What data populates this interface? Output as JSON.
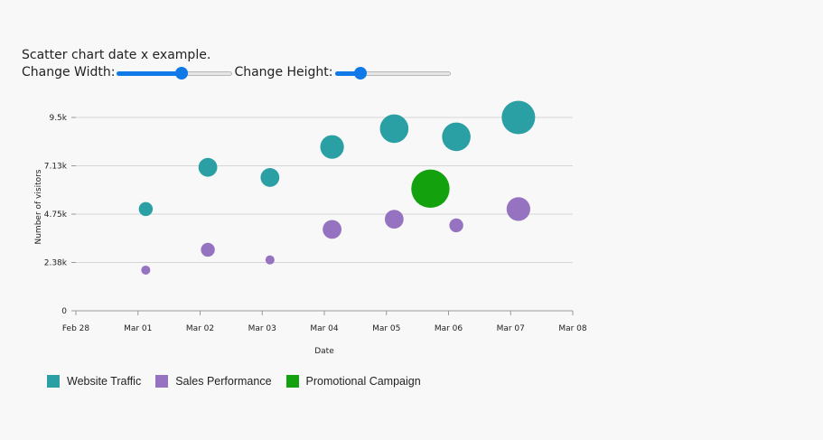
{
  "controls": {
    "title": "Scatter chart date x example.",
    "width_label": "Change Width:",
    "height_label": "Change Height:",
    "width_slider_value": 0.56,
    "height_slider_value": 0.22
  },
  "chart_data": {
    "type": "scatter",
    "x_ticks": [
      "Feb 28",
      "Mar 01",
      "Mar 02",
      "Mar 03",
      "Mar 04",
      "Mar 05",
      "Mar 06",
      "Mar 07",
      "Mar 08"
    ],
    "y_ticks": [
      "0",
      "2.38k",
      "4.75k",
      "7.13k",
      "9.5k"
    ],
    "y_tick_values": [
      0,
      2375,
      4750,
      7125,
      9500
    ],
    "ylim": [
      0,
      9500
    ],
    "xlim": [
      "Feb 28",
      "Mar 08"
    ],
    "xlabel": "Date",
    "ylabel": "Number of visitors",
    "grid": true,
    "legend_position": "bottom-left",
    "series": [
      {
        "name": "Website Traffic",
        "color": "#2aa0a4",
        "points": [
          {
            "x": "Mar 01 03:00",
            "y": 5000,
            "size": 1
          },
          {
            "x": "Mar 02 03:00",
            "y": 7050,
            "size": 2
          },
          {
            "x": "Mar 03 03:00",
            "y": 6550,
            "size": 2
          },
          {
            "x": "Mar 04 03:00",
            "y": 8050,
            "size": 3
          },
          {
            "x": "Mar 05 03:00",
            "y": 8950,
            "size": 4
          },
          {
            "x": "Mar 06 03:00",
            "y": 8550,
            "size": 4
          },
          {
            "x": "Mar 07 03:00",
            "y": 9500,
            "size": 5
          }
        ]
      },
      {
        "name": "Sales Performance",
        "color": "#9673c1",
        "points": [
          {
            "x": "Mar 01 03:00",
            "y": 2000,
            "size": 0
          },
          {
            "x": "Mar 02 03:00",
            "y": 3000,
            "size": 1
          },
          {
            "x": "Mar 03 03:00",
            "y": 2500,
            "size": 0
          },
          {
            "x": "Mar 04 03:00",
            "y": 4000,
            "size": 2
          },
          {
            "x": "Mar 05 03:00",
            "y": 4500,
            "size": 2
          },
          {
            "x": "Mar 06 03:00",
            "y": 4200,
            "size": 1
          },
          {
            "x": "Mar 07 03:00",
            "y": 5000,
            "size": 3
          }
        ]
      },
      {
        "name": "Promotional Campaign",
        "color": "#13a10e",
        "points": [
          {
            "x": "Mar 05 17:00",
            "y": 6000,
            "size": 6
          }
        ]
      }
    ]
  }
}
